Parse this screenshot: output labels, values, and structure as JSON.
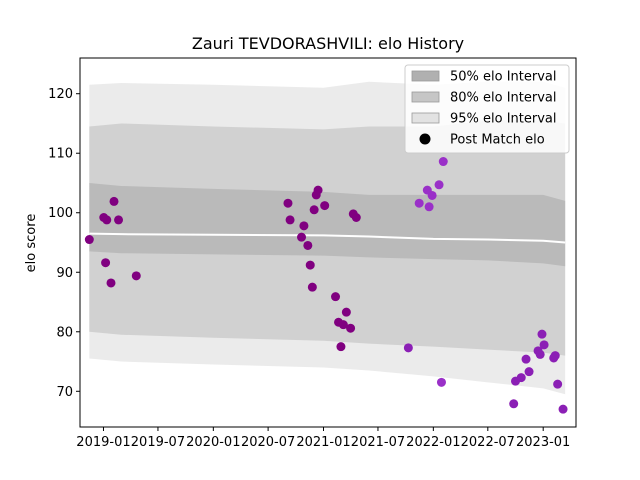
{
  "chart_data": {
    "type": "scatter",
    "title": "Zauri TEVDORASHVILI: elo History",
    "xlabel": "",
    "ylabel": "elo score",
    "xlim": [
      "2018-10-15",
      "2023-04-20"
    ],
    "ylim": [
      64,
      126
    ],
    "x_ticks": [
      "2019-01",
      "2019-07",
      "2020-01",
      "2020-07",
      "2021-01",
      "2021-07",
      "2022-01",
      "2022-07",
      "2023-01"
    ],
    "y_ticks": [
      70,
      80,
      90,
      100,
      110,
      120
    ],
    "grid": false,
    "legend_position": "top-right",
    "legend": [
      {
        "label": "50% elo Interval",
        "color": "#b0b0b0"
      },
      {
        "label": "80% elo Interval",
        "color": "#c6c6c6"
      },
      {
        "label": "95% elo Interval",
        "color": "#e2e2e2"
      },
      {
        "label": "Post Match elo",
        "color": "#000000"
      }
    ],
    "bands": {
      "x": [
        "2018-11-15",
        "2019-03-01",
        "2020-01-01",
        "2021-01-01",
        "2021-06-01",
        "2022-01-01",
        "2022-07-01",
        "2023-01-01",
        "2023-03-15"
      ],
      "mean": [
        96.5,
        96.4,
        96.3,
        96.2,
        96.0,
        95.6,
        95.5,
        95.3,
        95.0
      ],
      "p50": {
        "lower": [
          93.5,
          93.2,
          93.0,
          92.8,
          92.5,
          92.2,
          92.0,
          91.5,
          91.0
        ],
        "upper": [
          105.0,
          104.5,
          104.0,
          103.5,
          103.0,
          103.0,
          103.0,
          103.0,
          102.0
        ]
      },
      "p80": {
        "lower": [
          80.0,
          79.5,
          79.0,
          78.5,
          78.0,
          77.5,
          77.0,
          76.5,
          76.0
        ],
        "upper": [
          114.5,
          115.0,
          114.5,
          114.0,
          114.5,
          114.5,
          115.5,
          115.5,
          115.0
        ]
      },
      "p95": {
        "lower": [
          75.5,
          75.0,
          74.5,
          74.0,
          73.5,
          72.5,
          71.5,
          70.5,
          69.5
        ],
        "upper": [
          121.5,
          121.8,
          121.5,
          121.0,
          122.0,
          121.5,
          122.0,
          122.0,
          121.0
        ]
      }
    },
    "points": [
      {
        "x": "2018-11-15",
        "y": 95.5,
        "color": "#800080"
      },
      {
        "x": "2019-01-02",
        "y": 99.2,
        "color": "#800080"
      },
      {
        "x": "2019-01-08",
        "y": 91.6,
        "color": "#800080"
      },
      {
        "x": "2019-01-12",
        "y": 98.8,
        "color": "#800080"
      },
      {
        "x": "2019-01-26",
        "y": 88.2,
        "color": "#800080"
      },
      {
        "x": "2019-02-05",
        "y": 101.9,
        "color": "#800080"
      },
      {
        "x": "2019-02-20",
        "y": 98.8,
        "color": "#800080"
      },
      {
        "x": "2019-04-20",
        "y": 89.4,
        "color": "#800080"
      },
      {
        "x": "2020-09-05",
        "y": 101.6,
        "color": "#800080"
      },
      {
        "x": "2020-09-12",
        "y": 98.8,
        "color": "#800080"
      },
      {
        "x": "2020-10-20",
        "y": 95.9,
        "color": "#800080"
      },
      {
        "x": "2020-10-28",
        "y": 97.8,
        "color": "#800080"
      },
      {
        "x": "2020-11-10",
        "y": 94.5,
        "color": "#800080"
      },
      {
        "x": "2020-11-18",
        "y": 91.2,
        "color": "#800080"
      },
      {
        "x": "2020-11-25",
        "y": 87.5,
        "color": "#800080"
      },
      {
        "x": "2020-12-01",
        "y": 100.5,
        "color": "#800080"
      },
      {
        "x": "2020-12-08",
        "y": 103.0,
        "color": "#800080"
      },
      {
        "x": "2020-12-14",
        "y": 103.8,
        "color": "#800080"
      },
      {
        "x": "2021-01-05",
        "y": 101.2,
        "color": "#800080"
      },
      {
        "x": "2021-02-10",
        "y": 85.9,
        "color": "#800080"
      },
      {
        "x": "2021-02-20",
        "y": 81.6,
        "color": "#800080"
      },
      {
        "x": "2021-02-28",
        "y": 77.5,
        "color": "#800080"
      },
      {
        "x": "2021-03-08",
        "y": 81.2,
        "color": "#800080"
      },
      {
        "x": "2021-03-18",
        "y": 83.3,
        "color": "#800080"
      },
      {
        "x": "2021-04-01",
        "y": 80.6,
        "color": "#800080"
      },
      {
        "x": "2021-04-10",
        "y": 99.8,
        "color": "#800080"
      },
      {
        "x": "2021-04-20",
        "y": 99.2,
        "color": "#800080"
      },
      {
        "x": "2021-10-10",
        "y": 77.3,
        "color": "#8b1fb5"
      },
      {
        "x": "2021-11-15",
        "y": 101.6,
        "color": "#9a30c8"
      },
      {
        "x": "2021-12-12",
        "y": 103.8,
        "color": "#9a30c8"
      },
      {
        "x": "2021-12-18",
        "y": 101.0,
        "color": "#9a30c8"
      },
      {
        "x": "2021-12-28",
        "y": 102.9,
        "color": "#9a30c8"
      },
      {
        "x": "2022-01-20",
        "y": 104.7,
        "color": "#9a30c8"
      },
      {
        "x": "2022-01-28",
        "y": 71.5,
        "color": "#9a30c8"
      },
      {
        "x": "2022-02-03",
        "y": 108.6,
        "color": "#9a30c8"
      },
      {
        "x": "2022-09-25",
        "y": 67.9,
        "color": "#8b1fb5"
      },
      {
        "x": "2022-10-01",
        "y": 71.7,
        "color": "#8b1fb5"
      },
      {
        "x": "2022-10-20",
        "y": 72.3,
        "color": "#8b1fb5"
      },
      {
        "x": "2022-11-05",
        "y": 75.4,
        "color": "#8b1fb5"
      },
      {
        "x": "2022-11-15",
        "y": 73.3,
        "color": "#8b1fb5"
      },
      {
        "x": "2022-12-15",
        "y": 76.8,
        "color": "#8b1fb5"
      },
      {
        "x": "2022-12-22",
        "y": 76.2,
        "color": "#8b1fb5"
      },
      {
        "x": "2022-12-28",
        "y": 79.6,
        "color": "#8b1fb5"
      },
      {
        "x": "2023-01-04",
        "y": 77.8,
        "color": "#8b1fb5"
      },
      {
        "x": "2023-02-05",
        "y": 75.6,
        "color": "#8b1fb5"
      },
      {
        "x": "2023-02-10",
        "y": 76.0,
        "color": "#8b1fb5"
      },
      {
        "x": "2023-02-18",
        "y": 71.2,
        "color": "#8b1fb5"
      },
      {
        "x": "2023-03-08",
        "y": 67.0,
        "color": "#8b1fb5"
      }
    ]
  }
}
